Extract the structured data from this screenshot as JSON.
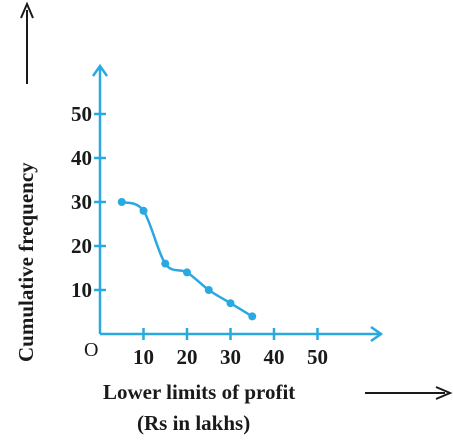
{
  "chart_data": {
    "type": "line",
    "title": "",
    "xlabel_line1": "Lower limits of profit",
    "xlabel_line2": "(Rs in lakhs)",
    "ylabel": "Cumulative frequency",
    "origin_label": "O",
    "x_ticks": [
      10,
      20,
      30,
      40,
      50
    ],
    "y_ticks": [
      10,
      20,
      30,
      40,
      50
    ],
    "xlim": [
      0,
      60
    ],
    "ylim": [
      0,
      60
    ],
    "grid": false,
    "legend": "none",
    "series": [
      {
        "x": [
          5,
          10,
          15,
          20,
          25,
          30,
          35
        ],
        "y": [
          30,
          28,
          16,
          14,
          10,
          7,
          4
        ]
      }
    ],
    "colors": {
      "axis": "#29a9e0",
      "line": "#29a9e0",
      "text": "#1a1a1a"
    }
  }
}
